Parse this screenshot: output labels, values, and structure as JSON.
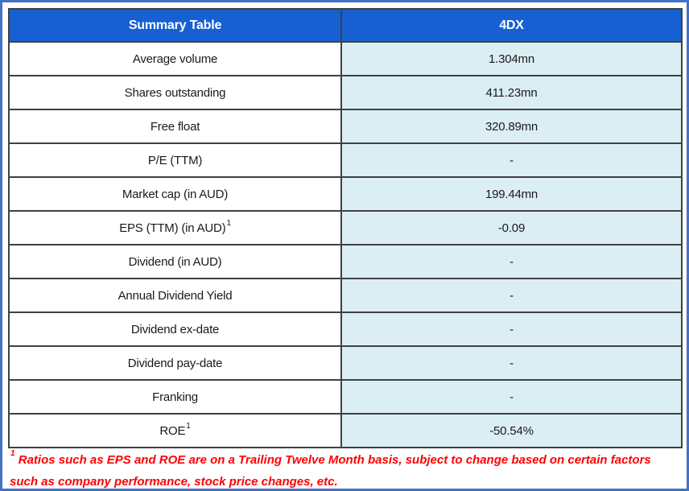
{
  "table": {
    "header": {
      "col1": "Summary Table",
      "col2": "4DX"
    },
    "rows": [
      {
        "label": "Average volume",
        "value": "1.304mn"
      },
      {
        "label": "Shares outstanding",
        "value": "411.23mn"
      },
      {
        "label": "Free float",
        "value": "320.89mn"
      },
      {
        "label": "P/E (TTM)",
        "value": "-"
      },
      {
        "label": "Market cap (in AUD)",
        "value": "199.44mn"
      },
      {
        "label": "EPS (TTM) (in AUD)",
        "label_superscript": "1",
        "value": "-0.09"
      },
      {
        "label": "Dividend (in AUD)",
        "value": "-"
      },
      {
        "label": "Annual Dividend Yield",
        "value": "-"
      },
      {
        "label": "Dividend ex-date",
        "value": "-"
      },
      {
        "label": "Dividend pay-date",
        "value": "-"
      },
      {
        "label": "Franking",
        "value": "-"
      },
      {
        "label": "ROE",
        "label_superscript": "1",
        "value": "-50.54%"
      }
    ]
  },
  "footnote": {
    "superscript": "1",
    "text": " Ratios such as EPS and ROE are on a Trailing Twelve Month basis, subject to change based on certain factors such as company performance, stock price changes, etc."
  },
  "colors": {
    "header_bg": "#1760D2",
    "value_bg": "#DBEEF4",
    "border_dark": "#404040",
    "frame_blue": "#4472C4",
    "footnote_red": "#FF0000"
  }
}
